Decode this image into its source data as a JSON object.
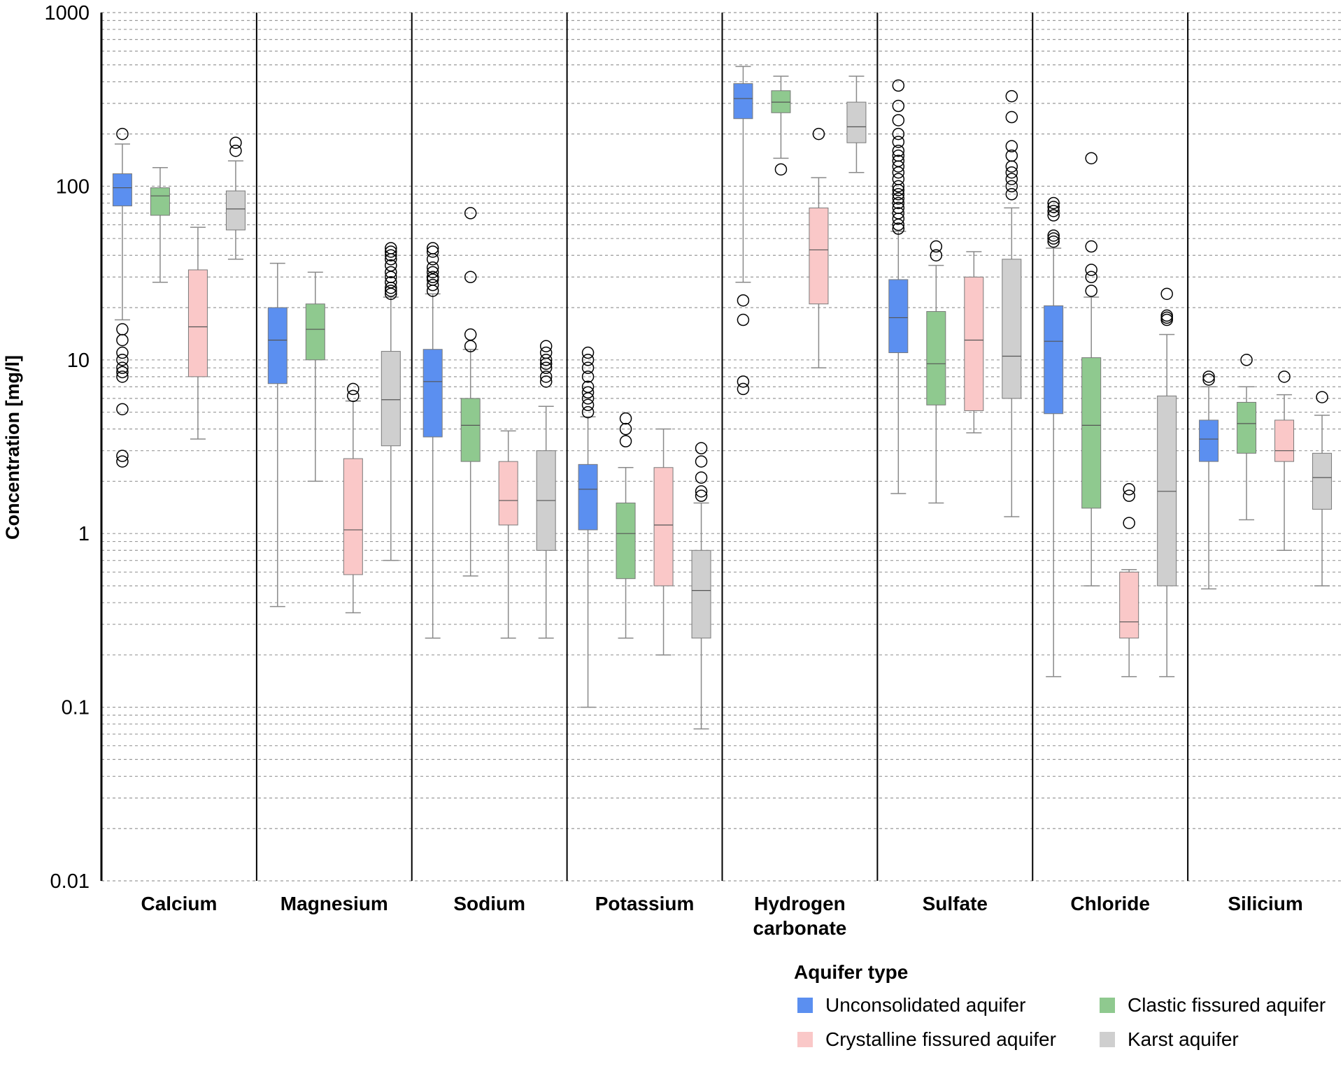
{
  "chart_data": {
    "type": "box",
    "ylabel": "Concentration [mg/l]",
    "yscale": "log",
    "ylim": [
      0.01,
      1000
    ],
    "yticks": [
      "0.01",
      "0.1",
      "1",
      "10",
      "100",
      "1000"
    ],
    "grid": "dashed minor log grid",
    "categories": [
      {
        "name": "Calcium",
        "lines": [
          "Calcium"
        ]
      },
      {
        "name": "Magnesium",
        "lines": [
          "Magnesium"
        ]
      },
      {
        "name": "Sodium",
        "lines": [
          "Sodium"
        ]
      },
      {
        "name": "Potassium",
        "lines": [
          "Potassium"
        ]
      },
      {
        "name": "Hydrogen carbonate",
        "lines": [
          "Hydrogen",
          "carbonate"
        ]
      },
      {
        "name": "Sulfate",
        "lines": [
          "Sulfate"
        ]
      },
      {
        "name": "Chloride",
        "lines": [
          "Chloride"
        ]
      },
      {
        "name": "Silicium",
        "lines": [
          "Silicium"
        ]
      }
    ],
    "legend": {
      "title": "Aquifer type",
      "placement": "bottom-right"
    },
    "series": [
      {
        "name": "Unconsolidated aquifer",
        "color": "#5b8ff0",
        "boxes": [
          {
            "whisker_low": 17,
            "q1": 77,
            "median": 98,
            "q3": 118,
            "whisker_high": 175,
            "outliers": [
              200,
              15,
              13,
              11,
              10,
              9,
              8.5,
              8,
              5.2,
              2.8,
              2.6
            ]
          },
          {
            "whisker_low": 0.38,
            "q1": 7.3,
            "median": 13,
            "q3": 20,
            "whisker_high": 36,
            "outliers": []
          },
          {
            "whisker_low": 0.25,
            "q1": 3.6,
            "median": 7.5,
            "q3": 11.5,
            "whisker_high": 24,
            "outliers": [
              44,
              42,
              38,
              34,
              32,
              30,
              29,
              27,
              25
            ]
          },
          {
            "whisker_low": 0.1,
            "q1": 1.05,
            "median": 1.8,
            "q3": 2.5,
            "whisker_high": 4.7,
            "outliers": [
              11,
              10,
              9,
              8,
              7,
              6.5,
              6,
              5.5,
              5
            ]
          },
          {
            "whisker_low": 28,
            "q1": 245,
            "median": 320,
            "q3": 390,
            "whisker_high": 490,
            "outliers": [
              22,
              17,
              7.5,
              6.8
            ]
          },
          {
            "whisker_low": 1.7,
            "q1": 11,
            "median": 17.5,
            "q3": 29,
            "whisker_high": 55,
            "outliers": [
              380,
              290,
              240,
              200,
              180,
              160,
              150,
              140,
              130,
              120,
              110,
              100,
              95,
              90,
              85,
              80,
              75,
              70,
              65,
              60,
              57
            ]
          },
          {
            "whisker_low": 0.15,
            "q1": 4.9,
            "median": 12.8,
            "q3": 20.5,
            "whisker_high": 44,
            "outliers": [
              80,
              76,
              72,
              68,
              52,
              50,
              48
            ]
          },
          {
            "whisker_low": 0.48,
            "q1": 2.6,
            "median": 3.5,
            "q3": 4.5,
            "whisker_high": 7,
            "outliers": [
              8,
              7.7
            ]
          }
        ]
      },
      {
        "name": "Clastic fissured aquifer",
        "color": "#8fc98f",
        "boxes": [
          {
            "whisker_low": 28,
            "q1": 68,
            "median": 88,
            "q3": 98,
            "whisker_high": 128,
            "outliers": []
          },
          {
            "whisker_low": 2,
            "q1": 10,
            "median": 15,
            "q3": 21,
            "whisker_high": 32,
            "outliers": []
          },
          {
            "whisker_low": 0.57,
            "q1": 2.6,
            "median": 4.2,
            "q3": 6,
            "whisker_high": 11.5,
            "outliers": [
              70,
              30,
              14,
              12
            ]
          },
          {
            "whisker_low": 0.25,
            "q1": 0.55,
            "median": 1,
            "q3": 1.5,
            "whisker_high": 2.4,
            "outliers": [
              4.6,
              4,
              3.4
            ]
          },
          {
            "whisker_low": 145,
            "q1": 265,
            "median": 305,
            "q3": 355,
            "whisker_high": 430,
            "outliers": [
              125
            ]
          },
          {
            "whisker_low": 1.5,
            "q1": 5.5,
            "median": 9.5,
            "q3": 19,
            "whisker_high": 35,
            "outliers": [
              45,
              40
            ]
          },
          {
            "whisker_low": 0.5,
            "q1": 1.4,
            "median": 4.2,
            "q3": 10.3,
            "whisker_high": 23,
            "outliers": [
              145,
              45,
              33,
              30,
              25
            ]
          },
          {
            "whisker_low": 1.2,
            "q1": 2.9,
            "median": 4.3,
            "q3": 5.7,
            "whisker_high": 7,
            "outliers": [
              10
            ]
          }
        ]
      },
      {
        "name": "Crystalline fissured aquifer",
        "color": "#fac8c8",
        "boxes": [
          {
            "whisker_low": 3.5,
            "q1": 8,
            "median": 15.5,
            "q3": 33,
            "whisker_high": 58,
            "outliers": []
          },
          {
            "whisker_low": 0.35,
            "q1": 0.58,
            "median": 1.05,
            "q3": 2.7,
            "whisker_high": 5.8,
            "outliers": [
              6.8,
              6.2
            ]
          },
          {
            "whisker_low": 0.25,
            "q1": 1.12,
            "median": 1.55,
            "q3": 2.6,
            "whisker_high": 3.9,
            "outliers": []
          },
          {
            "whisker_low": 0.2,
            "q1": 0.5,
            "median": 1.12,
            "q3": 2.4,
            "whisker_high": 4,
            "outliers": []
          },
          {
            "whisker_low": 9,
            "q1": 21,
            "median": 43,
            "q3": 75,
            "whisker_high": 112,
            "outliers": [
              200
            ]
          },
          {
            "whisker_low": 3.8,
            "q1": 5.1,
            "median": 13,
            "q3": 30,
            "whisker_high": 42,
            "outliers": []
          },
          {
            "whisker_low": 0.15,
            "q1": 0.25,
            "median": 0.31,
            "q3": 0.6,
            "whisker_high": 0.62,
            "outliers": [
              1.8,
              1.65,
              1.15
            ]
          },
          {
            "whisker_low": 0.8,
            "q1": 2.6,
            "median": 3,
            "q3": 4.5,
            "whisker_high": 6.3,
            "outliers": [
              8
            ]
          }
        ]
      },
      {
        "name": "Karst aquifer",
        "color": "#cfcfcf",
        "boxes": [
          {
            "whisker_low": 38,
            "q1": 56,
            "median": 74,
            "q3": 94,
            "whisker_high": 140,
            "outliers": [
              178,
              160
            ]
          },
          {
            "whisker_low": 0.7,
            "q1": 3.2,
            "median": 5.9,
            "q3": 11.2,
            "whisker_high": 23,
            "outliers": [
              44,
              42,
              40,
              38,
              35,
              32,
              30,
              28,
              26,
              25,
              24
            ]
          },
          {
            "whisker_low": 0.25,
            "q1": 0.8,
            "median": 1.55,
            "q3": 3,
            "whisker_high": 5.4,
            "outliers": [
              12,
              11,
              10,
              9.5,
              9,
              8,
              7.5
            ]
          },
          {
            "whisker_low": 0.075,
            "q1": 0.25,
            "median": 0.47,
            "q3": 0.8,
            "whisker_high": 1.5,
            "outliers": [
              3.1,
              2.6,
              2.1,
              1.75,
              1.65
            ]
          },
          {
            "whisker_low": 120,
            "q1": 178,
            "median": 220,
            "q3": 305,
            "whisker_high": 430,
            "outliers": []
          },
          {
            "whisker_low": 1.25,
            "q1": 6,
            "median": 10.5,
            "q3": 38,
            "whisker_high": 75,
            "outliers": [
              330,
              250,
              170,
              150,
              130,
              120,
              110,
              100,
              90
            ]
          },
          {
            "whisker_low": 0.15,
            "q1": 0.5,
            "median": 1.75,
            "q3": 6.2,
            "whisker_high": 14,
            "outliers": [
              24,
              18,
              17.5,
              17
            ]
          },
          {
            "whisker_low": 0.5,
            "q1": 1.38,
            "median": 2.1,
            "q3": 2.9,
            "whisker_high": 4.8,
            "outliers": [
              6.1
            ]
          }
        ]
      }
    ]
  }
}
